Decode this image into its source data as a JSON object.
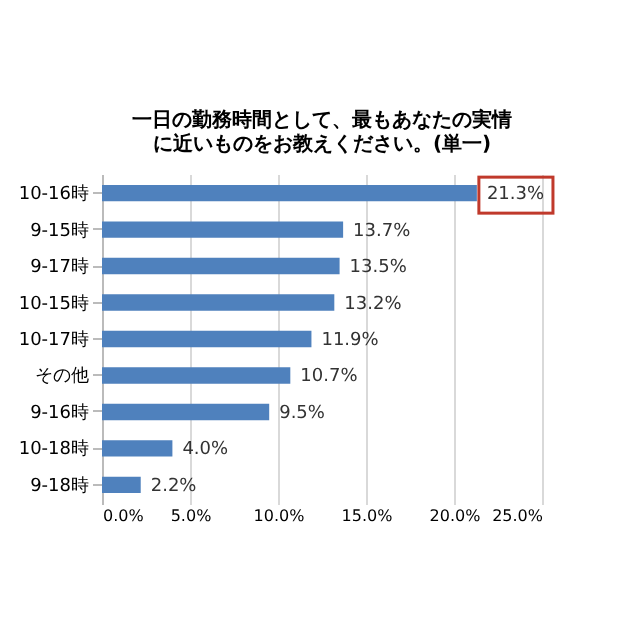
{
  "chart_data": {
    "type": "bar",
    "orientation": "horizontal",
    "title": "一日の勤務時間として、最もあなたの実情に近いものをお教えください。(単一)",
    "categories": [
      "10-16時",
      "9-15時",
      "9-17時",
      "10-15時",
      "10-17時",
      "その他",
      "9-16時",
      "10-18時",
      "9-18時"
    ],
    "values": [
      21.3,
      13.7,
      13.5,
      13.2,
      11.9,
      10.7,
      9.5,
      4.0,
      2.2
    ],
    "value_labels": [
      "21.3%",
      "13.7%",
      "13.5%",
      "13.2%",
      "11.9%",
      "10.7%",
      "9.5%",
      "4.0%",
      "2.2%"
    ],
    "color": "#4f81bd",
    "xlim": [
      0,
      25
    ],
    "xticks": [
      {
        "value": 0,
        "label": "0.0%"
      },
      {
        "value": 5,
        "label": "5.0%"
      },
      {
        "value": 10,
        "label": "10.0%"
      },
      {
        "value": 15,
        "label": "15.0%"
      },
      {
        "value": 20,
        "label": "20.0%"
      },
      {
        "value": 25,
        "label": "25.0%"
      }
    ],
    "grid": "x"
  }
}
